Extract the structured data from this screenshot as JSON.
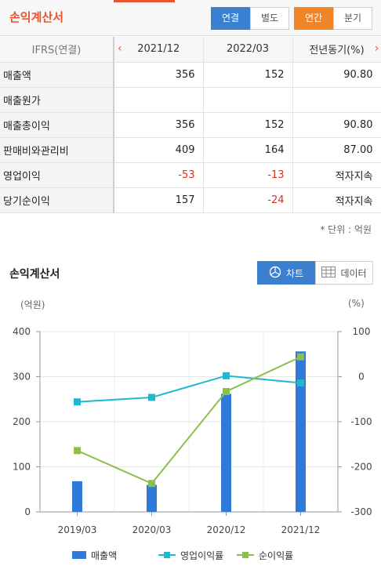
{
  "header": {
    "title": "손익계산서",
    "basis_tabs": [
      "연결",
      "별도"
    ],
    "basis_selected": 0,
    "period_tabs": [
      "연간",
      "분기"
    ],
    "period_selected": 0
  },
  "table": {
    "header_label": "IFRS(연결)",
    "periods": [
      "2021/12",
      "2022/03",
      "전년동기(%)"
    ],
    "prev_arrow": "‹",
    "next_arrow": "›",
    "rows": [
      {
        "label": "매출액",
        "values": [
          "356",
          "152",
          "90.80"
        ]
      },
      {
        "label": "매출원가",
        "values": [
          "",
          "",
          ""
        ]
      },
      {
        "label": "매출총이익",
        "values": [
          "356",
          "152",
          "90.80"
        ]
      },
      {
        "label": "판매비와관리비",
        "values": [
          "409",
          "164",
          "87.00"
        ]
      },
      {
        "label": "영업이익",
        "values": [
          "-53",
          "-13",
          "적자지속"
        ]
      },
      {
        "label": "당기순이익",
        "values": [
          "157",
          "-24",
          "적자지속"
        ]
      }
    ],
    "unit_note": "* 단위 : 억원"
  },
  "chart_section": {
    "title": "손익계산서",
    "chart_button": "차트",
    "data_button": "데이터",
    "left_unit": "(억원)",
    "right_unit": "(%)"
  },
  "colors": {
    "accent": "#e8552f",
    "blue_button": "#3a7fd0",
    "orange_button": "#f08428",
    "bar": "#2f7ad8",
    "operating_margin": "#1eb8cf",
    "net_margin": "#8cc04a",
    "negative": "#d93025"
  },
  "chart_data": {
    "type": "bar",
    "categories": [
      "2019/03",
      "2020/03",
      "2020/12",
      "2021/12"
    ],
    "series": [
      {
        "name": "매출액",
        "type": "bar",
        "axis": "left",
        "values": [
          68,
          60,
          262,
          356
        ]
      },
      {
        "name": "영업이익률",
        "type": "line",
        "axis": "right",
        "values": [
          -56,
          -46,
          2,
          -14
        ]
      },
      {
        "name": "순이익률",
        "type": "line",
        "axis": "right",
        "values": [
          -164,
          -237,
          -33,
          44
        ]
      }
    ],
    "y_left": {
      "ticks": [
        0,
        100,
        200,
        300,
        400
      ],
      "range": [
        0,
        400
      ]
    },
    "y_right": {
      "ticks": [
        -300,
        -200,
        -100,
        0,
        100
      ],
      "range": [
        -300,
        100
      ]
    },
    "grid": true,
    "legend_position": "bottom"
  }
}
